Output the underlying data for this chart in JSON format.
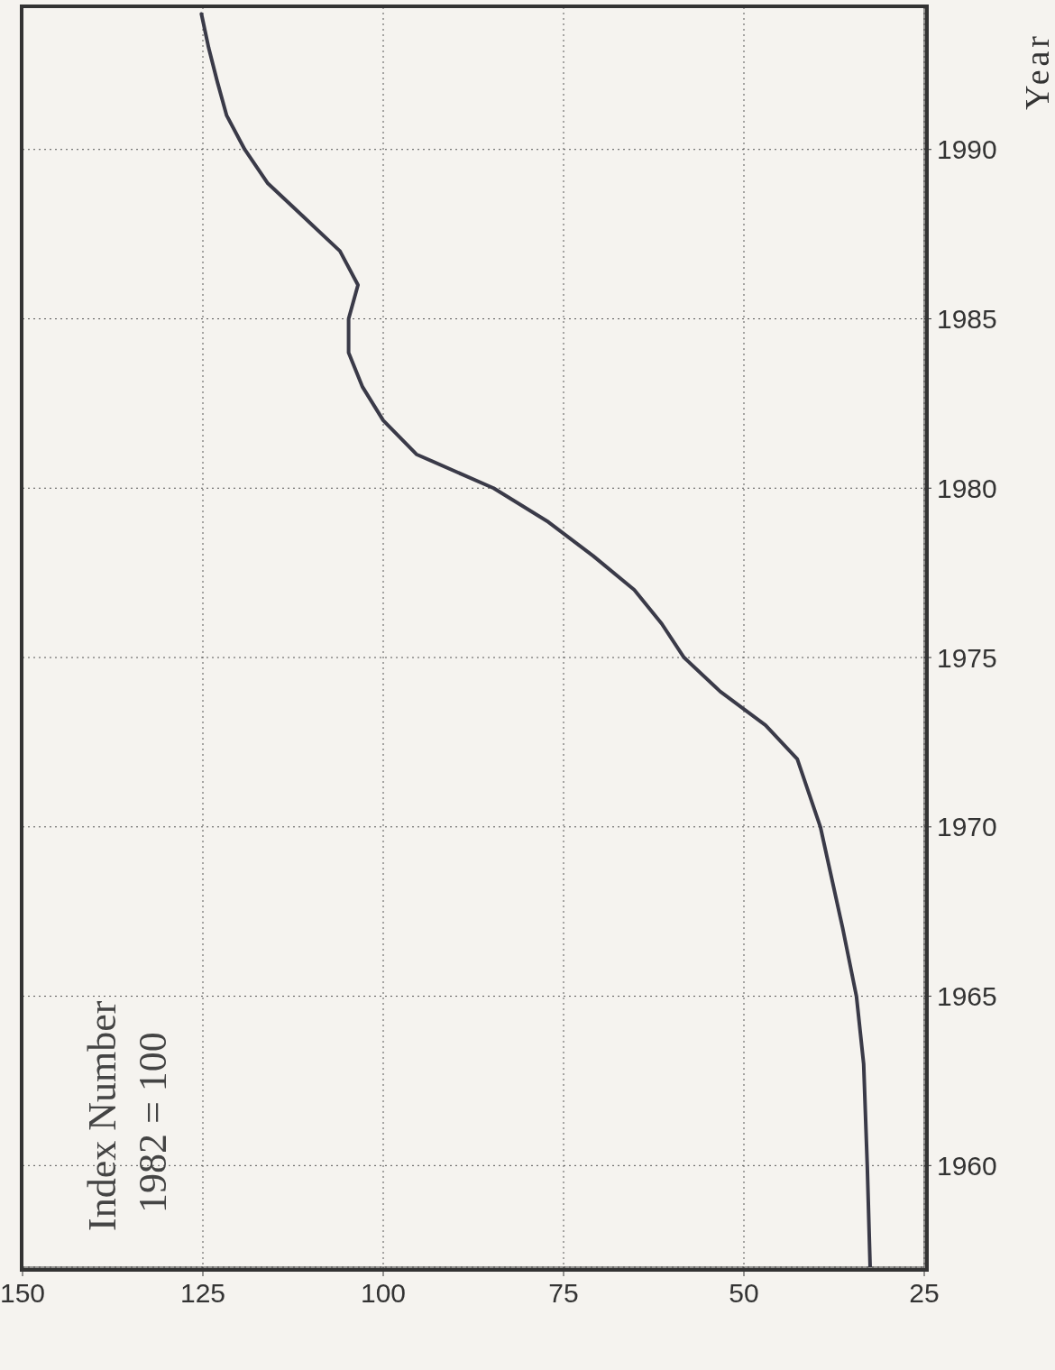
{
  "chart_data": {
    "type": "line",
    "ylabel": "Year",
    "annotations": [
      "Index Number",
      "1982 = 100"
    ],
    "x": [
      32.5,
      32.9,
      33.4,
      34.4,
      36.3,
      39.4,
      42.6,
      47,
      53.3,
      58.3,
      61.4,
      65.2,
      70.9,
      77.1,
      84.7,
      95.4,
      100,
      102.9,
      104.8,
      104.8,
      103.5,
      106,
      111,
      116,
      119.2,
      121.7,
      123,
      124.2,
      125.2
    ],
    "series": [
      {
        "color": "#3a3a48",
        "values": [
          1957,
          1960,
          1963,
          1965,
          1967,
          1970,
          1972,
          1973,
          1974,
          1975,
          1976,
          1977,
          1978,
          1979,
          1980,
          1981,
          1982,
          1983,
          1984,
          1985,
          1986,
          1987,
          1988,
          1989,
          1990,
          1991,
          1992,
          1993,
          1994
        ]
      }
    ],
    "xlim": [
      150,
      25
    ],
    "xticks": [
      150,
      125,
      100,
      75,
      50,
      25
    ],
    "ylim": [
      1957,
      1994.2
    ],
    "yticks": [
      1960,
      1965,
      1970,
      1975,
      1980,
      1985,
      1990
    ],
    "grid": true,
    "line_style": "solid",
    "marker": "none",
    "legend": false
  }
}
